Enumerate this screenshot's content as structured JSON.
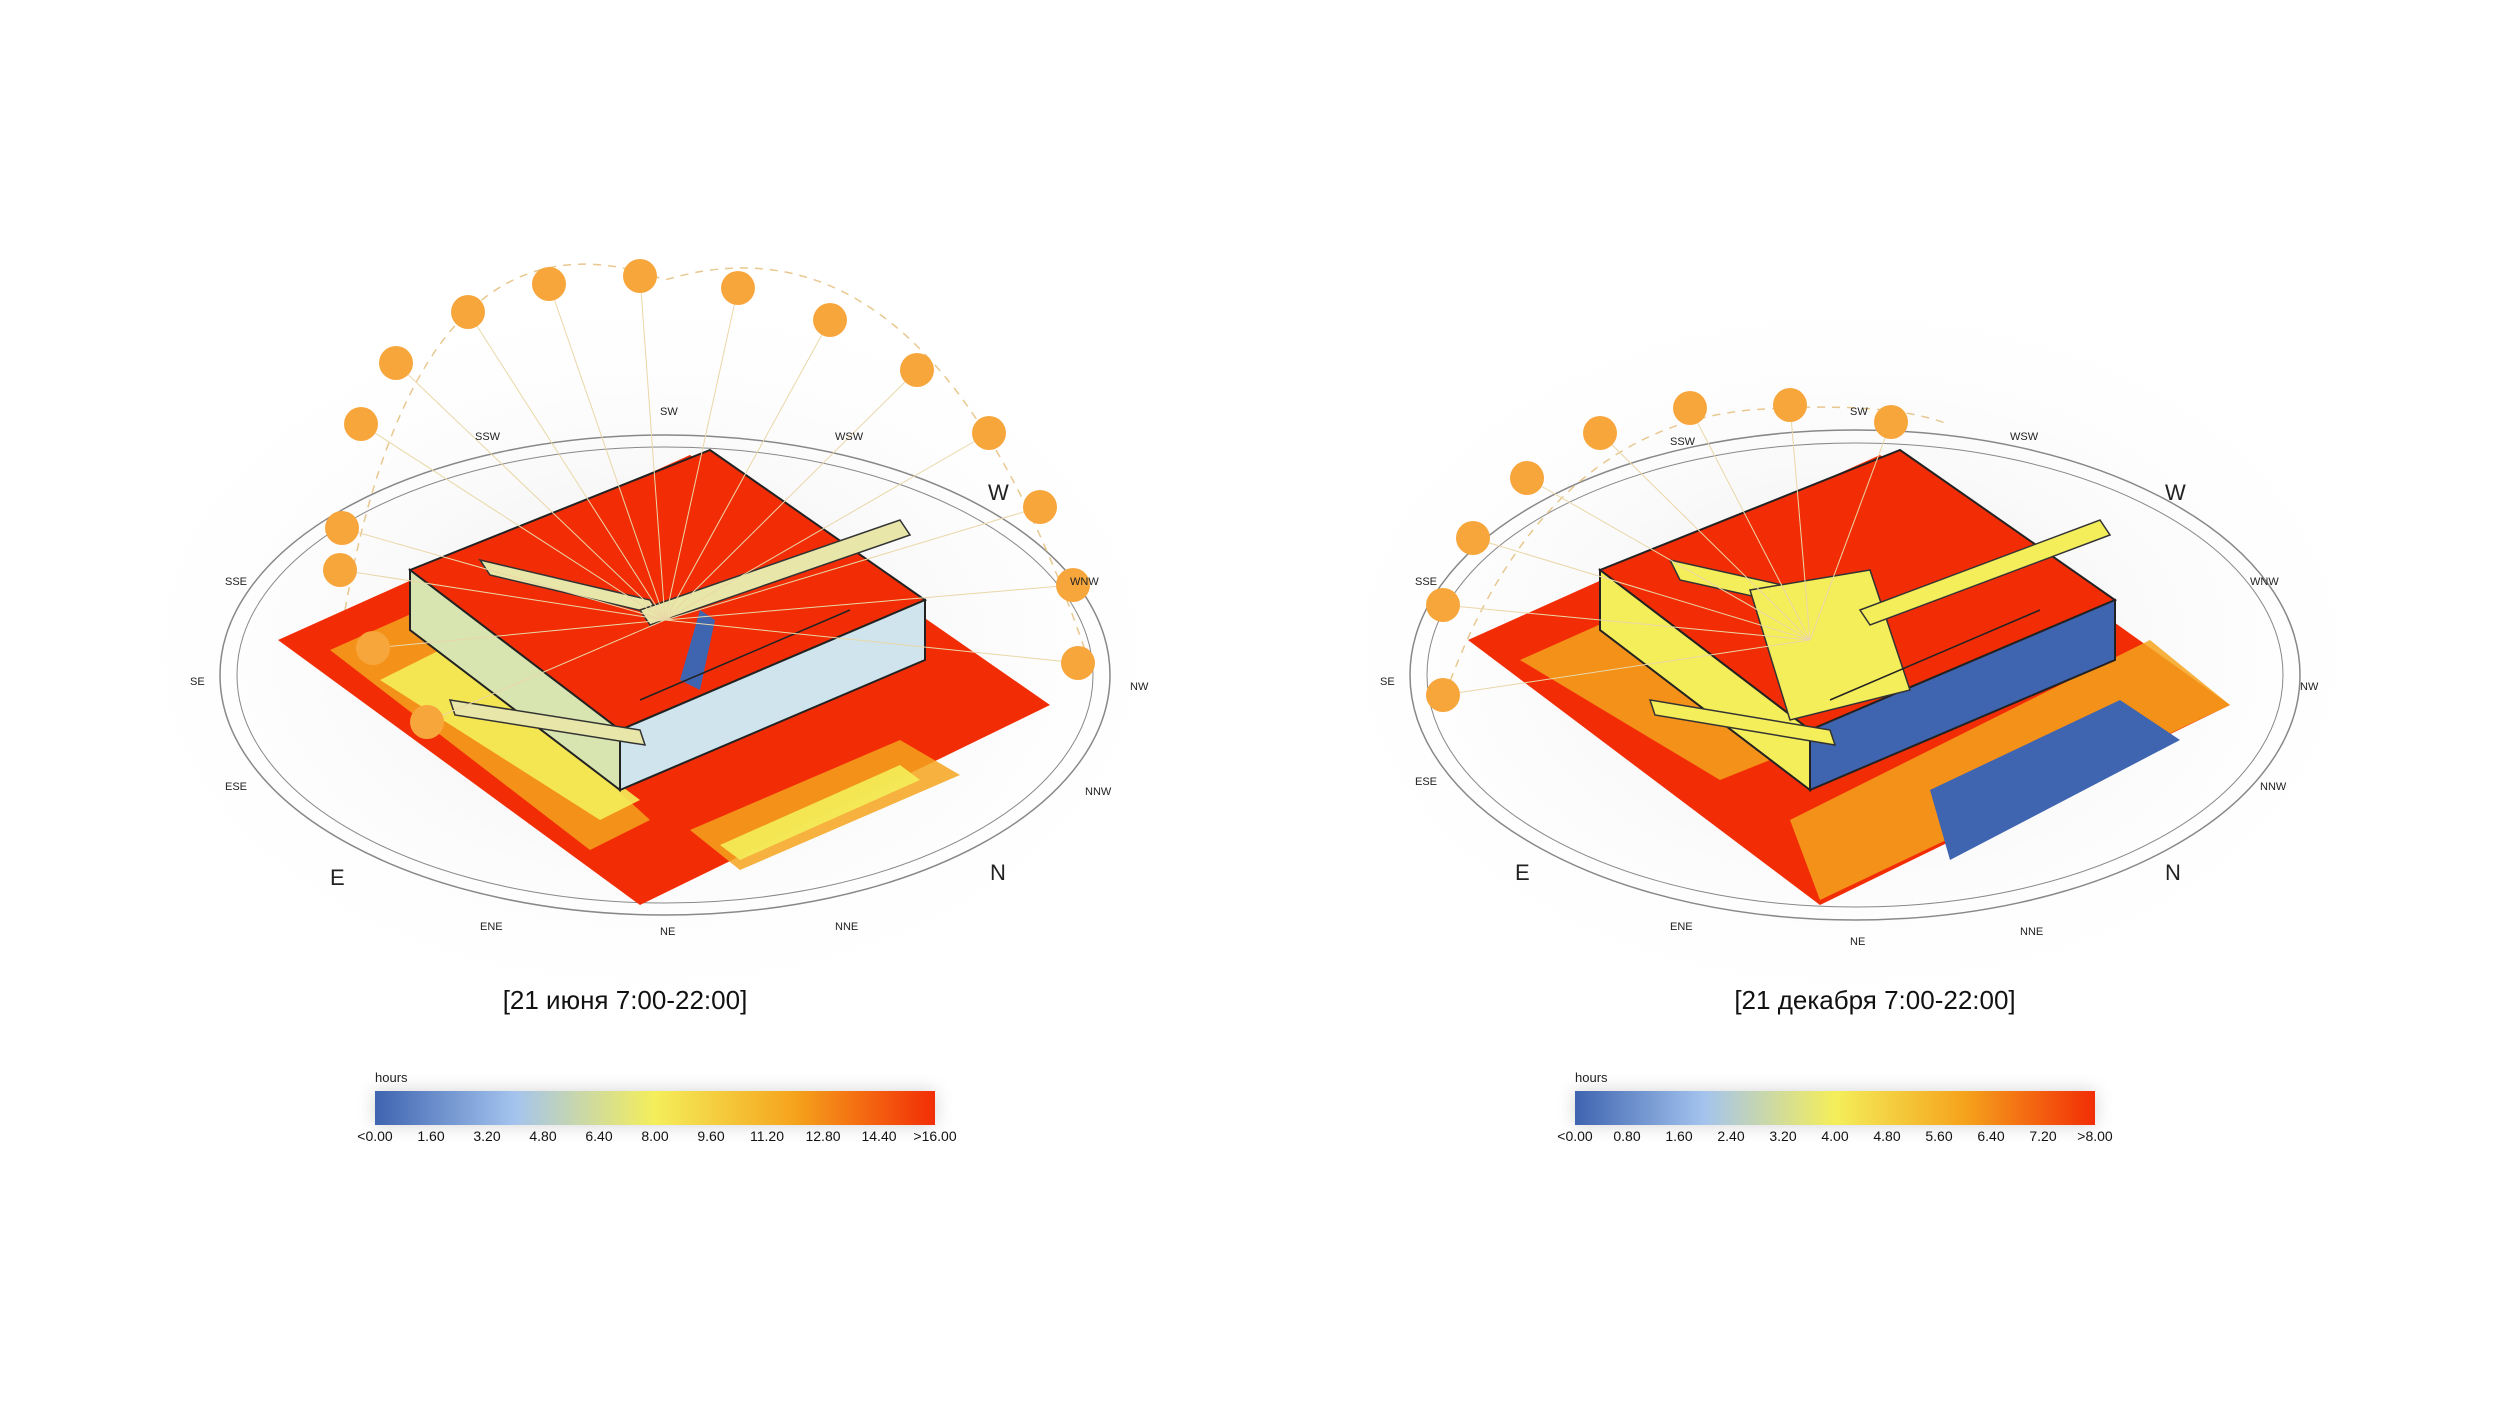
{
  "panels": [
    {
      "caption": "[21 июня 7:00-22:00]",
      "legend": {
        "unit": "hours",
        "ticks": [
          "<0.00",
          "1.60",
          "3.20",
          "4.80",
          "6.40",
          "8.00",
          "9.60",
          "11.20",
          "12.80",
          "14.40",
          ">16.00"
        ]
      },
      "compass": {
        "major": [
          "W",
          "N",
          "E"
        ],
        "minor": [
          "SW",
          "WSW",
          "NW",
          "NNW",
          "NE",
          "NNE",
          "ENE",
          "ESE",
          "SE",
          "SSE",
          "SSW",
          "WNW"
        ]
      },
      "sun_positions": 16
    },
    {
      "caption": "[21 декабря 7:00-22:00]",
      "legend": {
        "unit": "hours",
        "ticks": [
          "<0.00",
          "0.80",
          "1.60",
          "2.40",
          "3.20",
          "4.00",
          "4.80",
          "5.60",
          "6.40",
          "7.20",
          ">8.00"
        ]
      },
      "compass": {
        "major": [
          "W",
          "N",
          "E"
        ],
        "minor": [
          "SW",
          "WSW",
          "NW",
          "NNW",
          "NE",
          "NNE",
          "ENE",
          "ESE",
          "SE",
          "SSE",
          "SSW",
          "WNW"
        ]
      },
      "sun_positions": 8
    }
  ],
  "colors": {
    "scale": [
      "#3f64b0",
      "#a4c4ee",
      "#f4ee5a",
      "#f5a31c",
      "#f22d06"
    ],
    "sun": "#f7a63c",
    "hot": "#f22d06"
  }
}
